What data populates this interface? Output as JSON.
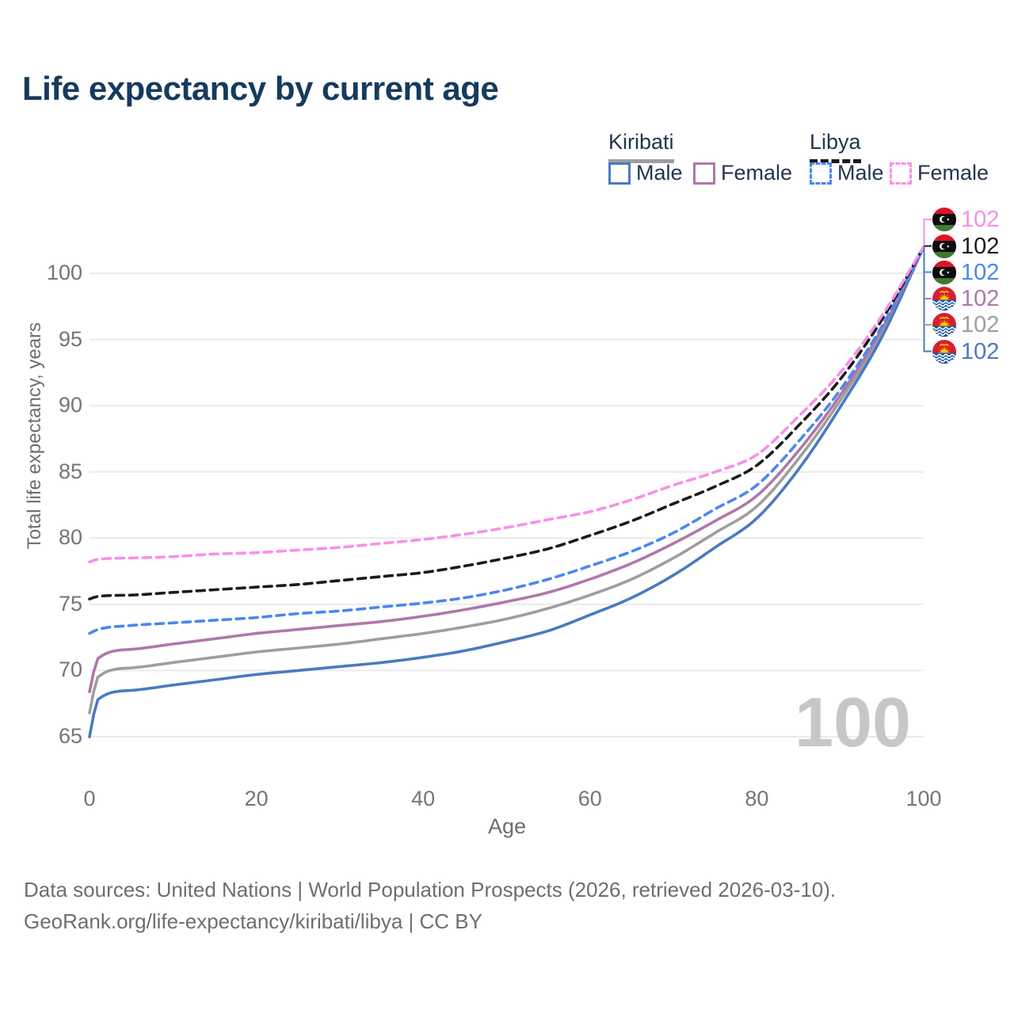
{
  "title": "Life expectancy by current age",
  "legend": {
    "groups": [
      {
        "label": "Kiribati",
        "style": "solid",
        "rule_color": "#9e9e9e",
        "items": [
          {
            "label": "Male",
            "color": "#4a7ac0"
          },
          {
            "label": "Female",
            "color": "#b077ab"
          }
        ]
      },
      {
        "label": "Libya",
        "style": "dashed",
        "rule_color": "#1a1a1a",
        "items": [
          {
            "label": "Male",
            "color": "#4b87ef"
          },
          {
            "label": "Female",
            "color": "#f78fea"
          }
        ]
      }
    ]
  },
  "axes": {
    "x": {
      "label": "Age",
      "ticks": [
        0,
        20,
        40,
        60,
        80,
        100
      ],
      "range": [
        0,
        100
      ]
    },
    "y": {
      "label": "Total life expectancy, years",
      "ticks": [
        65,
        70,
        75,
        80,
        85,
        90,
        95,
        100
      ],
      "range": [
        63,
        103
      ]
    }
  },
  "watermark": "100",
  "end_labels": [
    {
      "flag": "libya",
      "country": "Libya",
      "series": "Female",
      "value": "102",
      "color": "#f78fea"
    },
    {
      "flag": "libya",
      "country": "Libya",
      "series": "Both sexes",
      "value": "102",
      "color": "#1b1b1b"
    },
    {
      "flag": "libya",
      "country": "Libya",
      "series": "Male",
      "value": "102",
      "color": "#4b87ef"
    },
    {
      "flag": "kiribati",
      "country": "Kiribati",
      "series": "Female",
      "value": "102",
      "color": "#b077ab"
    },
    {
      "flag": "kiribati",
      "country": "Kiribati",
      "series": "Both sexes",
      "value": "102",
      "color": "#9e9e9e"
    },
    {
      "flag": "kiribati",
      "country": "Kiribati",
      "series": "Male",
      "value": "102",
      "color": "#4a7ac0"
    }
  ],
  "footer": {
    "line1": "Data sources: United Nations | World Population Prospects (2026, retrieved 2026-03-10).",
    "line2": "GeoRank.org/life-expectancy/kiribati/libya | CC BY"
  },
  "chart_data": {
    "type": "line",
    "title": "Life expectancy by current age",
    "xlabel": "Age",
    "ylabel": "Total life expectancy, years",
    "xlim": [
      0,
      100
    ],
    "ylim": [
      63,
      103
    ],
    "grid": "horizontal",
    "legend_position": "top-right",
    "x": [
      0,
      1,
      5,
      10,
      15,
      20,
      25,
      30,
      35,
      40,
      45,
      50,
      55,
      60,
      65,
      70,
      75,
      80,
      85,
      90,
      95,
      100
    ],
    "series": [
      {
        "name": "Kiribati Both sexes",
        "country": "Kiribati",
        "sex": "both",
        "color": "#9e9e9e",
        "dash": false,
        "values": [
          66.8,
          69.5,
          70.2,
          70.6,
          71.0,
          71.4,
          71.7,
          72.0,
          72.4,
          72.8,
          73.3,
          73.9,
          74.7,
          75.7,
          76.9,
          78.5,
          80.4,
          82.4,
          86.0,
          90.4,
          95.5,
          102
        ]
      },
      {
        "name": "Kiribati Male",
        "country": "Kiribati",
        "sex": "male",
        "color": "#4a7ac0",
        "dash": false,
        "values": [
          65.0,
          67.8,
          68.5,
          68.9,
          69.3,
          69.7,
          70.0,
          70.3,
          70.6,
          71.0,
          71.5,
          72.2,
          73.0,
          74.2,
          75.5,
          77.2,
          79.3,
          81.5,
          85.2,
          89.9,
          95.2,
          102
        ]
      },
      {
        "name": "Kiribati Female",
        "country": "Kiribati",
        "sex": "female",
        "color": "#b077ab",
        "dash": false,
        "values": [
          68.4,
          70.9,
          71.6,
          72.0,
          72.4,
          72.8,
          73.1,
          73.4,
          73.7,
          74.1,
          74.6,
          75.2,
          75.9,
          76.9,
          78.1,
          79.6,
          81.3,
          83.2,
          86.6,
          90.8,
          95.8,
          102
        ]
      },
      {
        "name": "Libya Male",
        "country": "Libya",
        "sex": "male",
        "color": "#4b87ef",
        "dash": true,
        "values": [
          72.8,
          73.1,
          73.4,
          73.6,
          73.8,
          74.0,
          74.3,
          74.5,
          74.8,
          75.1,
          75.5,
          76.1,
          76.9,
          77.9,
          79.0,
          80.4,
          82.2,
          84.0,
          87.3,
          91.2,
          96.0,
          102
        ]
      },
      {
        "name": "Libya Both sexes",
        "country": "Libya",
        "sex": "both",
        "color": "#1b1b1b",
        "dash": true,
        "values": [
          75.4,
          75.6,
          75.7,
          75.9,
          76.1,
          76.3,
          76.5,
          76.8,
          77.1,
          77.4,
          77.9,
          78.5,
          79.2,
          80.2,
          81.3,
          82.6,
          83.9,
          85.5,
          88.5,
          92.0,
          96.5,
          102
        ]
      },
      {
        "name": "Libya Female",
        "country": "Libya",
        "sex": "female",
        "color": "#f78fea",
        "dash": true,
        "values": [
          78.2,
          78.4,
          78.5,
          78.6,
          78.8,
          78.9,
          79.1,
          79.3,
          79.6,
          79.9,
          80.3,
          80.8,
          81.4,
          82.0,
          82.9,
          84.0,
          85.0,
          86.3,
          89.2,
          92.5,
          96.8,
          102
        ]
      }
    ],
    "end_value_label": "102"
  }
}
